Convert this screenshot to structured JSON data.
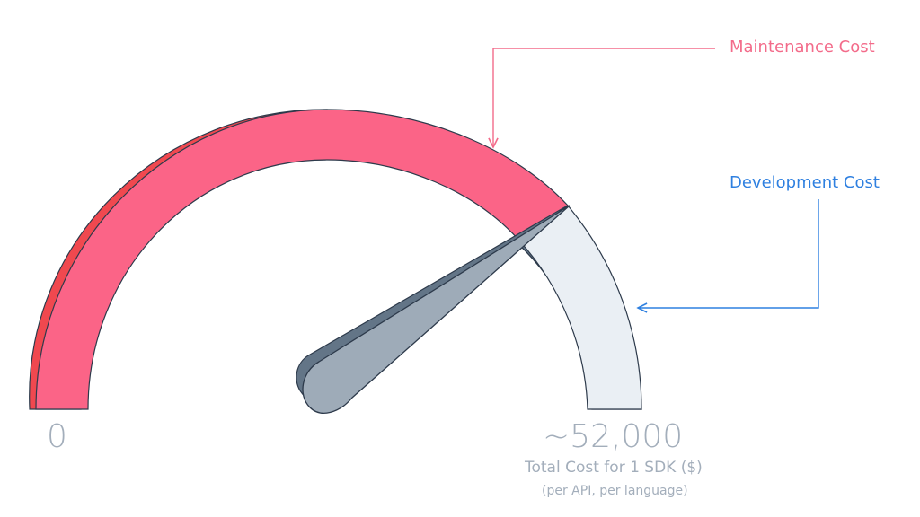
{
  "gauge": {
    "min_label": "0",
    "max_label": "~52,000",
    "axis_label": "Total Cost for 1 SDK ($)",
    "axis_sublabel": "(per API, per language)"
  },
  "callouts": {
    "maintenance": "Maintenance Cost",
    "development": "Development Cost"
  },
  "colors": {
    "maintenance": "#fb6487",
    "maintenance_shadow": "#f0484f",
    "development": "#eaeff4",
    "development_shadow": "#637587",
    "needle": "#9eabb8",
    "outline": "#2d3a4b",
    "maintenance_callout": "#f36b8a",
    "development_callout": "#2f80e0",
    "axis_text": "#a3aebb"
  }
}
